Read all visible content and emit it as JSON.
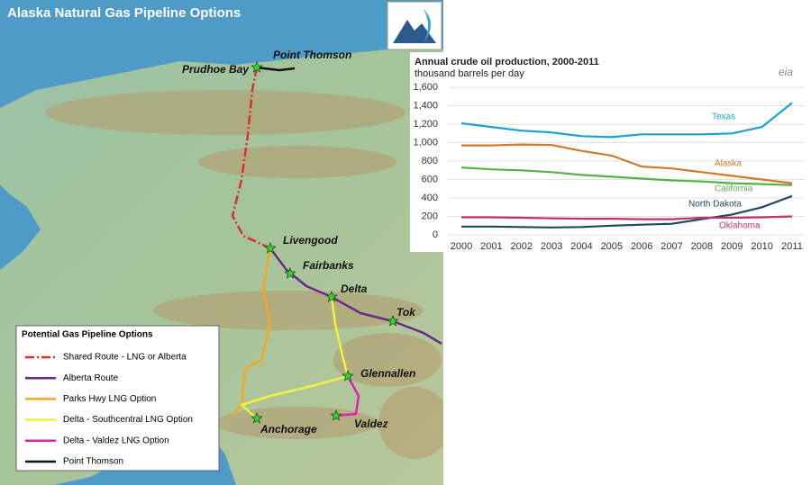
{
  "map": {
    "title": "Alaska Natural Gas Pipeline Options",
    "places": [
      "Point Thomson",
      "Prudhoe Bay",
      "Livengood",
      "Fairbanks",
      "Delta",
      "Tok",
      "Glennallen",
      "Anchorage",
      "Valdez"
    ],
    "legend": {
      "title": "Potential Gas Pipeline Options",
      "items": [
        {
          "label": "Shared Route - LNG or Alberta",
          "color": "#d8312b"
        },
        {
          "label": "Alberta Route",
          "color": "#6a2a8c"
        },
        {
          "label": "Parks Hwy LNG Option",
          "color": "#f5a623"
        },
        {
          "label": "Delta - Southcentral LNG Option",
          "color": "#f2f23a"
        },
        {
          "label": "Delta - Valdez LNG Option",
          "color": "#e020b0"
        },
        {
          "label": "Point Thomson",
          "color": "#111111"
        }
      ]
    }
  },
  "chart_data": {
    "type": "line",
    "title": "Annual crude oil production, 2000-2011",
    "subtitle": "thousand barrels per day",
    "logo_text": "eia",
    "categories": [
      "2000",
      "2001",
      "2002",
      "2003",
      "2004",
      "2005",
      "2006",
      "2007",
      "2008",
      "2009",
      "2010",
      "2011"
    ],
    "series": [
      {
        "name": "Texas",
        "color": "#1ca0d6",
        "values": [
          1210,
          1170,
          1130,
          1110,
          1070,
          1060,
          1090,
          1090,
          1090,
          1100,
          1170,
          1430
        ]
      },
      {
        "name": "Alaska",
        "color": "#d07a2a",
        "values": [
          970,
          970,
          980,
          975,
          910,
          860,
          740,
          720,
          680,
          640,
          600,
          560
        ]
      },
      {
        "name": "California",
        "color": "#58b04b",
        "values": [
          730,
          710,
          700,
          680,
          650,
          630,
          610,
          590,
          580,
          560,
          550,
          540
        ]
      },
      {
        "name": "North Dakota",
        "color": "#1c4a5e",
        "values": [
          90,
          90,
          85,
          80,
          85,
          100,
          110,
          120,
          170,
          220,
          300,
          420
        ]
      },
      {
        "name": "Oklahoma",
        "color": "#c0336a",
        "values": [
          190,
          190,
          185,
          180,
          175,
          175,
          170,
          170,
          185,
          185,
          190,
          200
        ]
      }
    ],
    "ylim": [
      0,
      1600
    ],
    "yticks": [
      0,
      200,
      400,
      600,
      800,
      {
        "value": 1000,
        "label": "1,000"
      },
      {
        "value": 1200,
        "label": "1,200"
      },
      {
        "value": 1400,
        "label": "1,400"
      },
      {
        "value": 1600,
        "label": "1,600"
      }
    ],
    "grid": true
  }
}
